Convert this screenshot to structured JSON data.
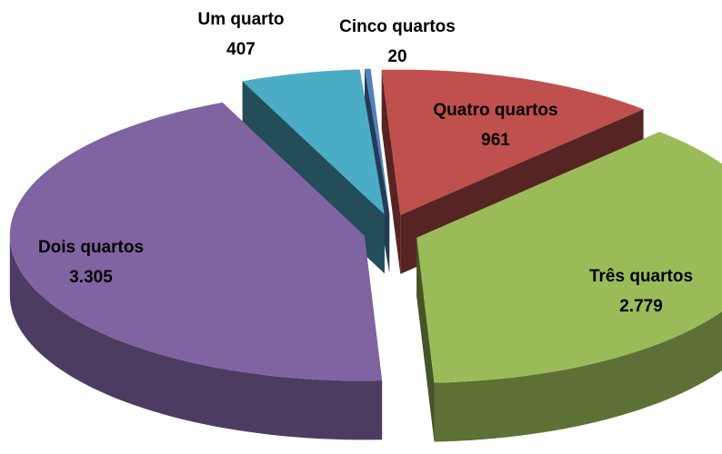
{
  "chart_data": {
    "type": "pie",
    "categories": [
      "Cinco quartos",
      "Quatro quartos",
      "Três quartos",
      "Dois quartos",
      "Um quarto"
    ],
    "values": [
      20,
      961,
      2779,
      3305,
      407
    ],
    "value_labels": [
      "20",
      "961",
      "2.779",
      "3.305",
      "407"
    ],
    "colors": [
      "#4f81bd",
      "#c0504d",
      "#9bbb59",
      "#8064a2",
      "#4bacc6"
    ]
  }
}
